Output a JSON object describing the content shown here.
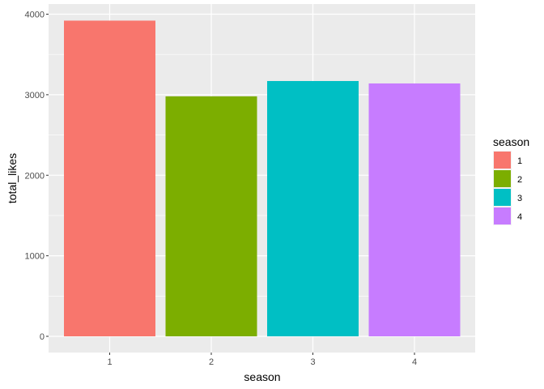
{
  "chart_data": {
    "type": "bar",
    "title": "",
    "xlabel": "season",
    "ylabel": "total_likes",
    "categories": [
      "1",
      "2",
      "3",
      "4"
    ],
    "values": [
      3920,
      2980,
      3170,
      3140
    ],
    "colors": [
      "#F8766D",
      "#7CAE00",
      "#00BFC4",
      "#C77CFF"
    ],
    "ylim": [
      0,
      4000
    ],
    "y_ticks": [
      0,
      1000,
      2000,
      3000,
      4000
    ],
    "y_tick_labels": [
      "0",
      "1000",
      "2000",
      "3000",
      "4000"
    ],
    "grid": true,
    "panel_background": "#EBEBEB",
    "grid_color": "#FFFFFF",
    "legend": {
      "title": "season",
      "position": "right",
      "entries": [
        "1",
        "2",
        "3",
        "4"
      ]
    }
  }
}
